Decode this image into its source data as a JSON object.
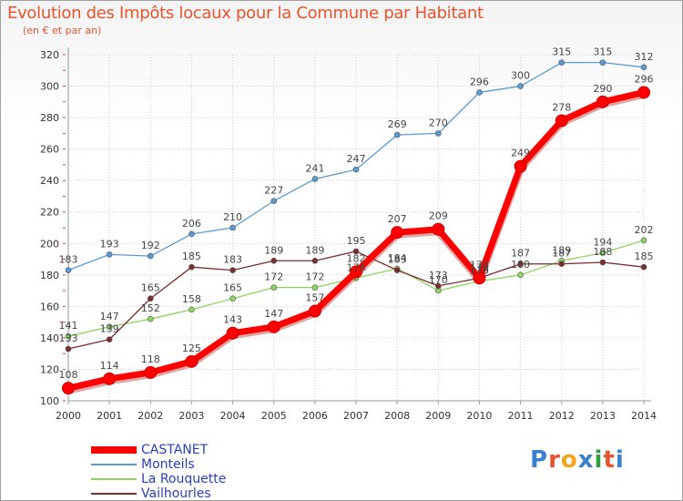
{
  "title": "Evolution des Impôts locaux pour la Commune par Habitant",
  "subtitle": "(en € et par an)",
  "logo_text": "Proxiti",
  "chart_data": {
    "type": "line",
    "title": "Evolution des Impôts locaux pour la Commune par Habitant",
    "subtitle": "(en € et par an)",
    "xlabel": "",
    "ylabel": "",
    "x": [
      "2000",
      "2001",
      "2002",
      "2003",
      "2004",
      "2005",
      "2006",
      "2007",
      "2008",
      "2009",
      "2010",
      "2011",
      "2012",
      "2013",
      "2014"
    ],
    "ylim": [
      100,
      320
    ],
    "yticks": [
      100,
      120,
      140,
      160,
      180,
      200,
      220,
      240,
      260,
      280,
      300,
      320
    ],
    "grid": true,
    "legend_position": "bottom-left",
    "series": [
      {
        "name": "Monteils",
        "color": "#5a9bd4",
        "highlight": false,
        "values": [
          183,
          193,
          192,
          206,
          210,
          227,
          241,
          247,
          269,
          270,
          296,
          300,
          315,
          315,
          312
        ]
      },
      {
        "name": "La Rouquette",
        "color": "#8ed462",
        "highlight": false,
        "values": [
          141,
          147,
          152,
          158,
          165,
          172,
          172,
          178,
          184,
          170,
          176,
          180,
          189,
          194,
          202
        ]
      },
      {
        "name": "Vailhourles",
        "color": "#7a2e2e",
        "highlight": false,
        "values": [
          133,
          139,
          165,
          185,
          183,
          189,
          189,
          195,
          183,
          173,
          178,
          187,
          187,
          188,
          185
        ]
      },
      {
        "name": "CASTANET",
        "color": "#ff0000",
        "highlight": true,
        "values": [
          108,
          114,
          118,
          125,
          143,
          147,
          157,
          182,
          207,
          209,
          178,
          249,
          278,
          290,
          296
        ]
      }
    ]
  }
}
